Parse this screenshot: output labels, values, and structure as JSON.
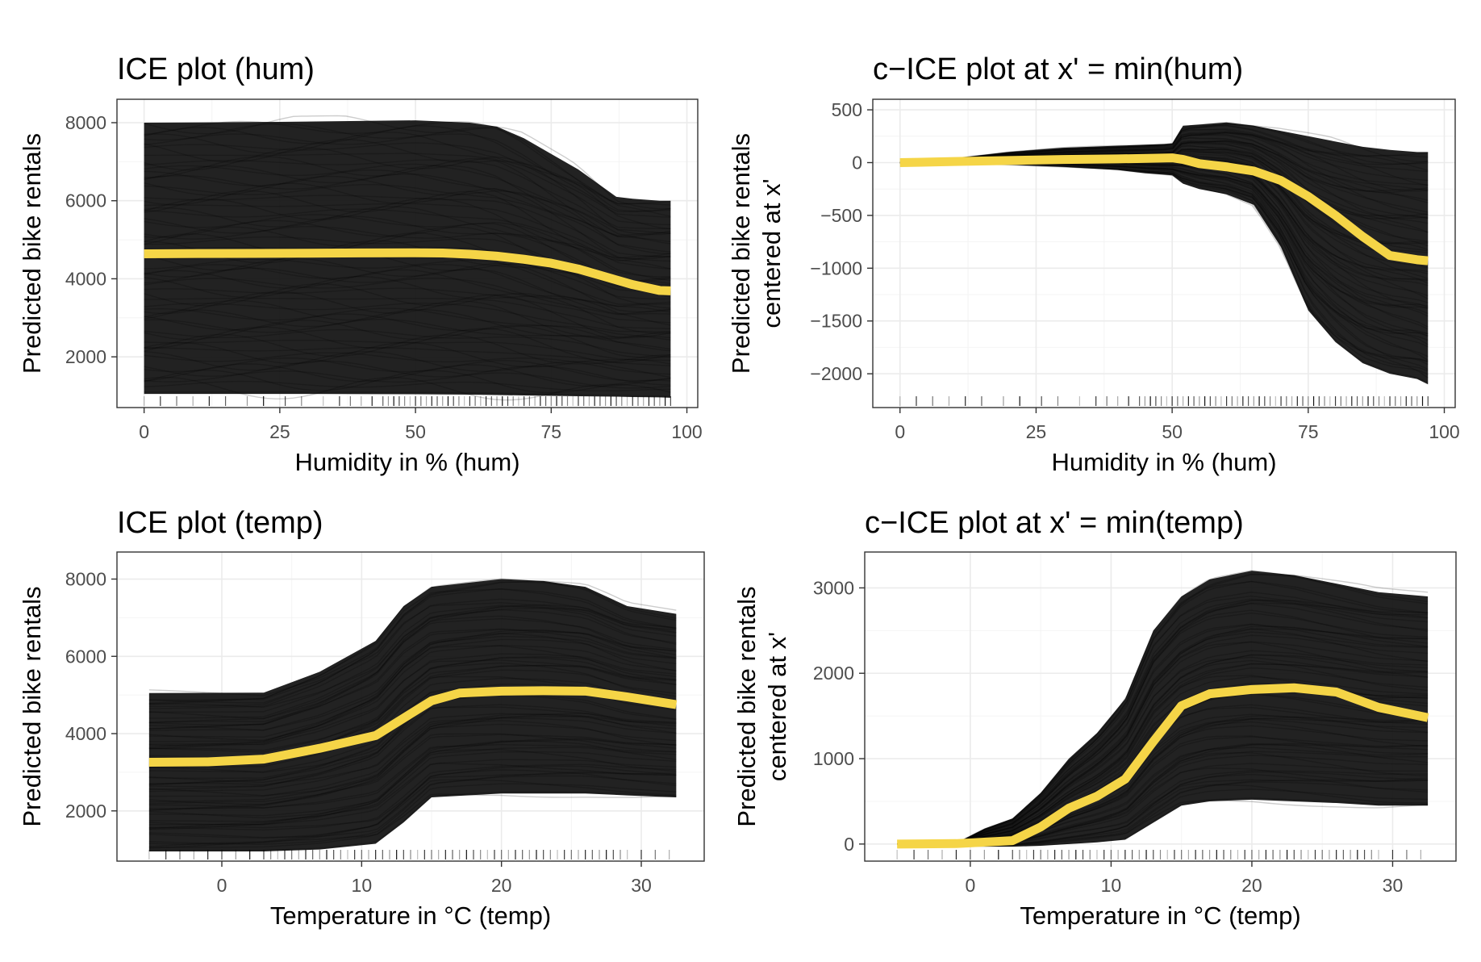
{
  "chart_data": [
    {
      "id": "ice_hum",
      "type": "line",
      "title": "ICE plot (hum)",
      "xlabel": "Humidity in % (hum)",
      "ylabel": [
        "Predicted bike rentals"
      ],
      "xlim": [
        -5,
        102
      ],
      "ylim": [
        700,
        8600
      ],
      "xticks": [
        0,
        25,
        50,
        75,
        100
      ],
      "yticks": [
        2000,
        4000,
        6000,
        8000
      ],
      "grid": true,
      "colors": {
        "average": "#f5d547",
        "ice": "#000000"
      },
      "average": {
        "x": [
          0,
          10,
          20,
          30,
          40,
          50,
          55,
          60,
          65,
          70,
          75,
          80,
          85,
          90,
          95,
          97
        ],
        "y": [
          4640,
          4648,
          4650,
          4655,
          4662,
          4665,
          4660,
          4630,
          4580,
          4500,
          4400,
          4250,
          4050,
          3850,
          3700,
          3690
        ]
      },
      "band": {
        "x": [
          0,
          25,
          50,
          60,
          65,
          70,
          75,
          80,
          87,
          90,
          95,
          97
        ],
        "upper": [
          8000,
          8020,
          8060,
          8000,
          7900,
          7600,
          7200,
          6800,
          6100,
          6050,
          6000,
          6000
        ],
        "lower": [
          1050,
          1050,
          1040,
          1030,
          1020,
          1010,
          1000,
          990,
          980,
          970,
          960,
          950
        ]
      },
      "rug_x": [
        0,
        3,
        6,
        9,
        12,
        15,
        19,
        22,
        26,
        29,
        33,
        36,
        38,
        40,
        42,
        44,
        45,
        46,
        47,
        48,
        49,
        50,
        51,
        52,
        53,
        54,
        55,
        56,
        57,
        58,
        59,
        60,
        61,
        62,
        63,
        64,
        65,
        66,
        67,
        68,
        69,
        70,
        71,
        72,
        73,
        74,
        75,
        76,
        77,
        78,
        79,
        80,
        81,
        82,
        83,
        84,
        85,
        86,
        87,
        88,
        89,
        90,
        91,
        92,
        93,
        94,
        95,
        96,
        97
      ]
    },
    {
      "id": "cice_hum",
      "type": "line",
      "title": "c−ICE plot at x' = min(hum)",
      "xlabel": "Humidity in % (hum)",
      "ylabel": [
        "Predicted bike rentals",
        "centered at x'"
      ],
      "xlim": [
        -5,
        102
      ],
      "ylim": [
        -2320,
        600
      ],
      "xticks": [
        0,
        25,
        50,
        75,
        100
      ],
      "yticks": [
        -2000,
        -1500,
        -1000,
        -500,
        0,
        500
      ],
      "grid": true,
      "colors": {
        "average": "#f5d547",
        "ice": "#000000"
      },
      "average": {
        "x": [
          0,
          10,
          20,
          30,
          40,
          50,
          52,
          55,
          60,
          65,
          70,
          75,
          80,
          85,
          90,
          95,
          97
        ],
        "y": [
          0,
          10,
          20,
          30,
          35,
          45,
          30,
          -10,
          -40,
          -80,
          -170,
          -320,
          -500,
          -700,
          -880,
          -920,
          -930
        ]
      },
      "band": {
        "x": [
          0,
          10,
          20,
          30,
          40,
          45,
          50,
          52,
          55,
          60,
          65,
          70,
          75,
          80,
          85,
          90,
          95,
          97
        ],
        "upper": [
          0,
          40,
          100,
          140,
          160,
          170,
          180,
          350,
          360,
          380,
          350,
          300,
          250,
          200,
          150,
          120,
          100,
          100
        ],
        "lower": [
          0,
          -10,
          -20,
          -40,
          -70,
          -100,
          -120,
          -200,
          -250,
          -300,
          -400,
          -800,
          -1400,
          -1700,
          -1900,
          -2000,
          -2050,
          -2100
        ]
      },
      "rug_x": [
        0,
        3,
        6,
        9,
        12,
        15,
        19,
        22,
        26,
        29,
        33,
        36,
        38,
        40,
        42,
        44,
        45,
        46,
        47,
        48,
        49,
        50,
        51,
        52,
        53,
        54,
        55,
        56,
        57,
        58,
        59,
        60,
        61,
        62,
        63,
        64,
        65,
        66,
        67,
        68,
        69,
        70,
        71,
        72,
        73,
        74,
        75,
        76,
        77,
        78,
        79,
        80,
        81,
        82,
        83,
        84,
        85,
        86,
        87,
        88,
        89,
        90,
        91,
        92,
        93,
        94,
        95,
        96,
        97
      ]
    },
    {
      "id": "ice_temp",
      "type": "line",
      "title": "ICE plot (temp)",
      "xlabel": "Temperature in °C (temp)",
      "ylabel": [
        "Predicted bike rentals"
      ],
      "xlim": [
        -7.5,
        34.5
      ],
      "ylim": [
        700,
        8700
      ],
      "xticks": [
        0,
        10,
        20,
        30
      ],
      "yticks": [
        2000,
        4000,
        6000,
        8000
      ],
      "grid": true,
      "colors": {
        "average": "#f5d547",
        "ice": "#000000"
      },
      "average": {
        "x": [
          -5.2,
          -1,
          3,
          7,
          11,
          15,
          17,
          20,
          23,
          26,
          29,
          32.5
        ],
        "y": [
          3260,
          3270,
          3340,
          3620,
          3950,
          4850,
          5050,
          5100,
          5110,
          5100,
          4950,
          4750
        ]
      },
      "band": {
        "x": [
          -5.2,
          3,
          7,
          11,
          13,
          15,
          20,
          23,
          26,
          29,
          32.5
        ],
        "upper": [
          5050,
          5060,
          5600,
          6400,
          7300,
          7800,
          8000,
          7950,
          7800,
          7300,
          7100
        ],
        "lower": [
          950,
          950,
          1000,
          1150,
          1700,
          2350,
          2450,
          2450,
          2450,
          2400,
          2350
        ]
      },
      "rug_x": [
        -5.2,
        -4,
        -3,
        -2,
        -1,
        0,
        1,
        2,
        3,
        3.5,
        4,
        4.5,
        5,
        5.5,
        6,
        6.5,
        7,
        7.5,
        8,
        8.5,
        9,
        9.5,
        10,
        10.5,
        11,
        11.5,
        12,
        12.5,
        13,
        13.5,
        14,
        14.5,
        15,
        15.5,
        16,
        16.5,
        17,
        17.5,
        18,
        18.5,
        19,
        19.5,
        20,
        20.5,
        21,
        21.5,
        22,
        22.5,
        23,
        23.5,
        24,
        24.5,
        25,
        25.5,
        26,
        26.5,
        27,
        27.5,
        28,
        28.5,
        29,
        30,
        31,
        32
      ]
    },
    {
      "id": "cice_temp",
      "type": "line",
      "title": "c−ICE plot at x' = min(temp)",
      "xlabel": "Temperature in °C (temp)",
      "ylabel": [
        "Predicted bike rentals",
        "centered at x'"
      ],
      "xlim": [
        -7.5,
        34.5
      ],
      "ylim": [
        -200,
        3420
      ],
      "xticks": [
        0,
        10,
        20,
        30
      ],
      "yticks": [
        0,
        1000,
        2000,
        3000
      ],
      "grid": true,
      "colors": {
        "average": "#f5d547",
        "ice": "#000000"
      },
      "average": {
        "x": [
          -5.2,
          -1,
          3,
          5,
          7,
          9,
          11,
          13,
          15,
          17,
          20,
          23,
          26,
          29,
          32.5
        ],
        "y": [
          0,
          5,
          40,
          200,
          420,
          560,
          760,
          1200,
          1620,
          1760,
          1810,
          1830,
          1780,
          1600,
          1480
        ]
      },
      "band": {
        "x": [
          -5.2,
          -1,
          1,
          3,
          5,
          7,
          9,
          11,
          13,
          15,
          17,
          20,
          23,
          26,
          29,
          32.5
        ],
        "upper": [
          0,
          10,
          180,
          300,
          600,
          1000,
          1300,
          1700,
          2500,
          2900,
          3100,
          3200,
          3150,
          3050,
          2950,
          2900
        ],
        "lower": [
          0,
          -20,
          -30,
          -30,
          -20,
          0,
          20,
          50,
          250,
          450,
          500,
          520,
          500,
          480,
          450,
          450
        ]
      },
      "rug_x": [
        -5.2,
        -4,
        -3,
        -2,
        -1,
        0,
        1,
        2,
        3,
        3.5,
        4,
        4.5,
        5,
        5.5,
        6,
        6.5,
        7,
        7.5,
        8,
        8.5,
        9,
        9.5,
        10,
        10.5,
        11,
        11.5,
        12,
        12.5,
        13,
        13.5,
        14,
        14.5,
        15,
        15.5,
        16,
        16.5,
        17,
        17.5,
        18,
        18.5,
        19,
        19.5,
        20,
        20.5,
        21,
        21.5,
        22,
        22.5,
        23,
        23.5,
        24,
        24.5,
        25,
        25.5,
        26,
        26.5,
        27,
        27.5,
        28,
        28.5,
        29,
        30,
        31,
        32
      ]
    }
  ]
}
